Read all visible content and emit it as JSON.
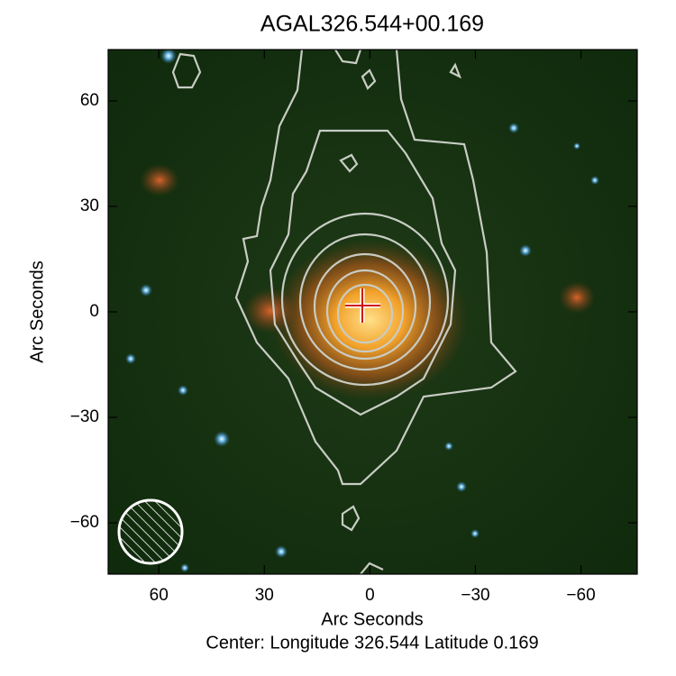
{
  "chart_data": {
    "type": "image",
    "title": "AGAL326.544+00.169",
    "xlabel": "Arc Seconds",
    "ylabel": "Arc Seconds",
    "caption": "Center:  Longitude 326.544 Latitude 0.169",
    "xlim": [
      74.4,
      -76
    ],
    "ylim": [
      -74.6,
      74.6
    ],
    "xticks": [
      60,
      30,
      0,
      {
        "value": -30,
        "label": "−30"
      },
      {
        "value": -60,
        "label": "−60"
      }
    ],
    "yticks": [
      {
        "value": -60,
        "label": "−60"
      },
      {
        "value": -30,
        "label": "−30"
      },
      0,
      30,
      60
    ]
  }
}
